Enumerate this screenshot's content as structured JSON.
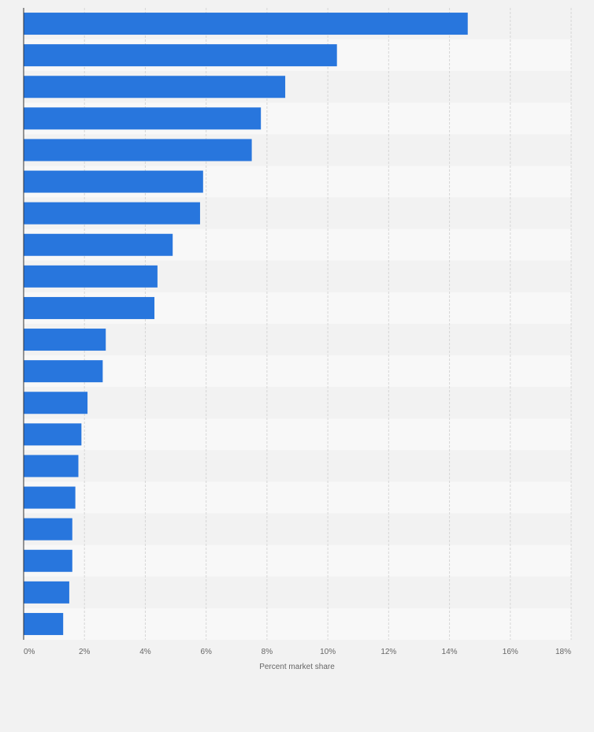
{
  "chart_data": {
    "type": "bar",
    "orientation": "horizontal",
    "xlabel": "Percent market share",
    "ylabel": "",
    "xlim": [
      0,
      18
    ],
    "ticks": [
      0,
      2,
      4,
      6,
      8,
      10,
      12,
      14,
      16,
      18
    ],
    "tick_labels": [
      "0%",
      "2%",
      "4%",
      "6%",
      "8%",
      "10%",
      "12%",
      "14%",
      "16%",
      "18%"
    ],
    "categories": [
      "",
      "",
      "",
      "",
      "",
      "",
      "",
      "",
      "",
      "",
      "",
      "",
      "",
      "",
      "",
      "",
      "",
      "",
      "",
      ""
    ],
    "values": [
      14.6,
      10.3,
      8.6,
      7.8,
      7.5,
      5.9,
      5.8,
      4.9,
      4.4,
      4.3,
      2.7,
      2.6,
      2.1,
      1.9,
      1.8,
      1.7,
      1.6,
      1.6,
      1.5,
      1.3
    ],
    "grid": true,
    "bar_color": "#2876dd",
    "band_colors": [
      "#f2f2f2",
      "#f8f8f8"
    ]
  }
}
